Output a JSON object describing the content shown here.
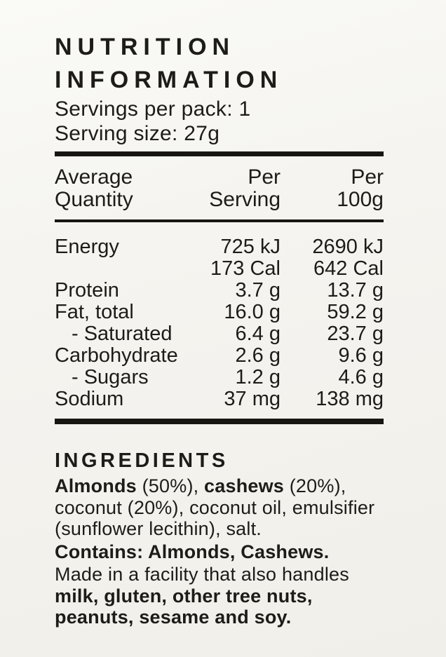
{
  "panel": {
    "title": "NUTRITION INFORMATION",
    "servings_per_pack": "Servings per pack: 1",
    "serving_size": "Serving size: 27g"
  },
  "table": {
    "columns": [
      "Average\nQuantity",
      "Per\nServing",
      "Per\n100g"
    ],
    "rows": [
      {
        "label": "Energy",
        "indent": false,
        "per_serving": "725 kJ",
        "per_100g": "2690 kJ"
      },
      {
        "label": "",
        "indent": false,
        "per_serving": "173 Cal",
        "per_100g": "642 Cal"
      },
      {
        "label": "Protein",
        "indent": false,
        "per_serving": "3.7 g",
        "per_100g": "13.7 g"
      },
      {
        "label": "Fat, total",
        "indent": false,
        "per_serving": "16.0 g",
        "per_100g": "59.2 g"
      },
      {
        "label": "- Saturated",
        "indent": true,
        "per_serving": "6.4 g",
        "per_100g": "23.7 g"
      },
      {
        "label": "Carbohydrate",
        "indent": false,
        "per_serving": "2.6 g",
        "per_100g": "9.6 g"
      },
      {
        "label": "- Sugars",
        "indent": true,
        "per_serving": "1.2 g",
        "per_100g": "4.6 g"
      },
      {
        "label": "Sodium",
        "indent": false,
        "per_serving": "37 mg",
        "per_100g": "138 mg"
      }
    ]
  },
  "ingredients": {
    "heading": "INGREDIENTS",
    "almonds_bold": "Almonds",
    "almonds_pct": " (50%), ",
    "cashews_bold": "cashews",
    "rest": " (20%), coconut (20%), coconut oil, emulsifier (sunflower lecithin), salt.",
    "contains": "Contains: Almonds, Cashews.",
    "facility_normal": "Made in a facility that also handles ",
    "facility_bold": "milk, gluten, other tree nuts, peanuts, sesame and soy."
  },
  "colors": {
    "background": "#f5f4f0",
    "text": "#1d1c19",
    "rule": "#171613"
  }
}
